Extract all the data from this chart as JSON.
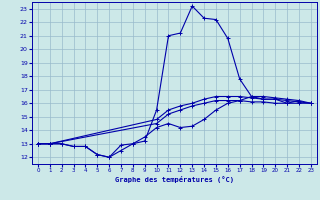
{
  "title": "Graphe des températures (°C)",
  "bg_color": "#cce8e8",
  "grid_color": "#99bbcc",
  "line_color": "#0000aa",
  "xlim": [
    -0.5,
    23.5
  ],
  "ylim": [
    11.5,
    23.5
  ],
  "xticks": [
    0,
    1,
    2,
    3,
    4,
    5,
    6,
    7,
    8,
    9,
    10,
    11,
    12,
    13,
    14,
    15,
    16,
    17,
    18,
    19,
    20,
    21,
    22,
    23
  ],
  "yticks": [
    12,
    13,
    14,
    15,
    16,
    17,
    18,
    19,
    20,
    21,
    22,
    23
  ],
  "line1_x": [
    0,
    1,
    2,
    3,
    4,
    5,
    6,
    7,
    8,
    9,
    10,
    11,
    12,
    13,
    14,
    15,
    16,
    17,
    18,
    19,
    20,
    21,
    22
  ],
  "line1_y": [
    13.0,
    13.0,
    13.0,
    12.8,
    12.8,
    12.2,
    12.0,
    12.9,
    13.0,
    13.2,
    15.5,
    21.0,
    21.2,
    23.2,
    22.3,
    22.2,
    20.8,
    17.8,
    16.5,
    16.3,
    16.3,
    16.0,
    16.2
  ],
  "line2_x": [
    0,
    1,
    2,
    3,
    4,
    5,
    6,
    7,
    8,
    9,
    10,
    11,
    12,
    13,
    14,
    15,
    16,
    17,
    18,
    19,
    20,
    21,
    22,
    23
  ],
  "line2_y": [
    13.0,
    13.0,
    13.0,
    12.8,
    12.8,
    12.2,
    12.0,
    12.5,
    13.0,
    13.5,
    14.2,
    14.5,
    14.2,
    14.3,
    14.8,
    15.5,
    16.0,
    16.2,
    16.5,
    16.5,
    16.4,
    16.3,
    16.2,
    16.0
  ],
  "line3_x": [
    0,
    1,
    10,
    11,
    12,
    13,
    14,
    15,
    16,
    17,
    18,
    19,
    20,
    21,
    22,
    23
  ],
  "line3_y": [
    13.0,
    13.0,
    14.8,
    15.5,
    15.8,
    16.0,
    16.3,
    16.5,
    16.5,
    16.5,
    16.4,
    16.3,
    16.3,
    16.2,
    16.1,
    16.0
  ],
  "line4_x": [
    0,
    1,
    10,
    11,
    12,
    13,
    14,
    15,
    16,
    17,
    18,
    19,
    20,
    21,
    22,
    23
  ],
  "line4_y": [
    13.0,
    13.0,
    14.5,
    15.2,
    15.5,
    15.8,
    16.0,
    16.2,
    16.2,
    16.2,
    16.1,
    16.1,
    16.0,
    16.0,
    16.0,
    16.0
  ]
}
